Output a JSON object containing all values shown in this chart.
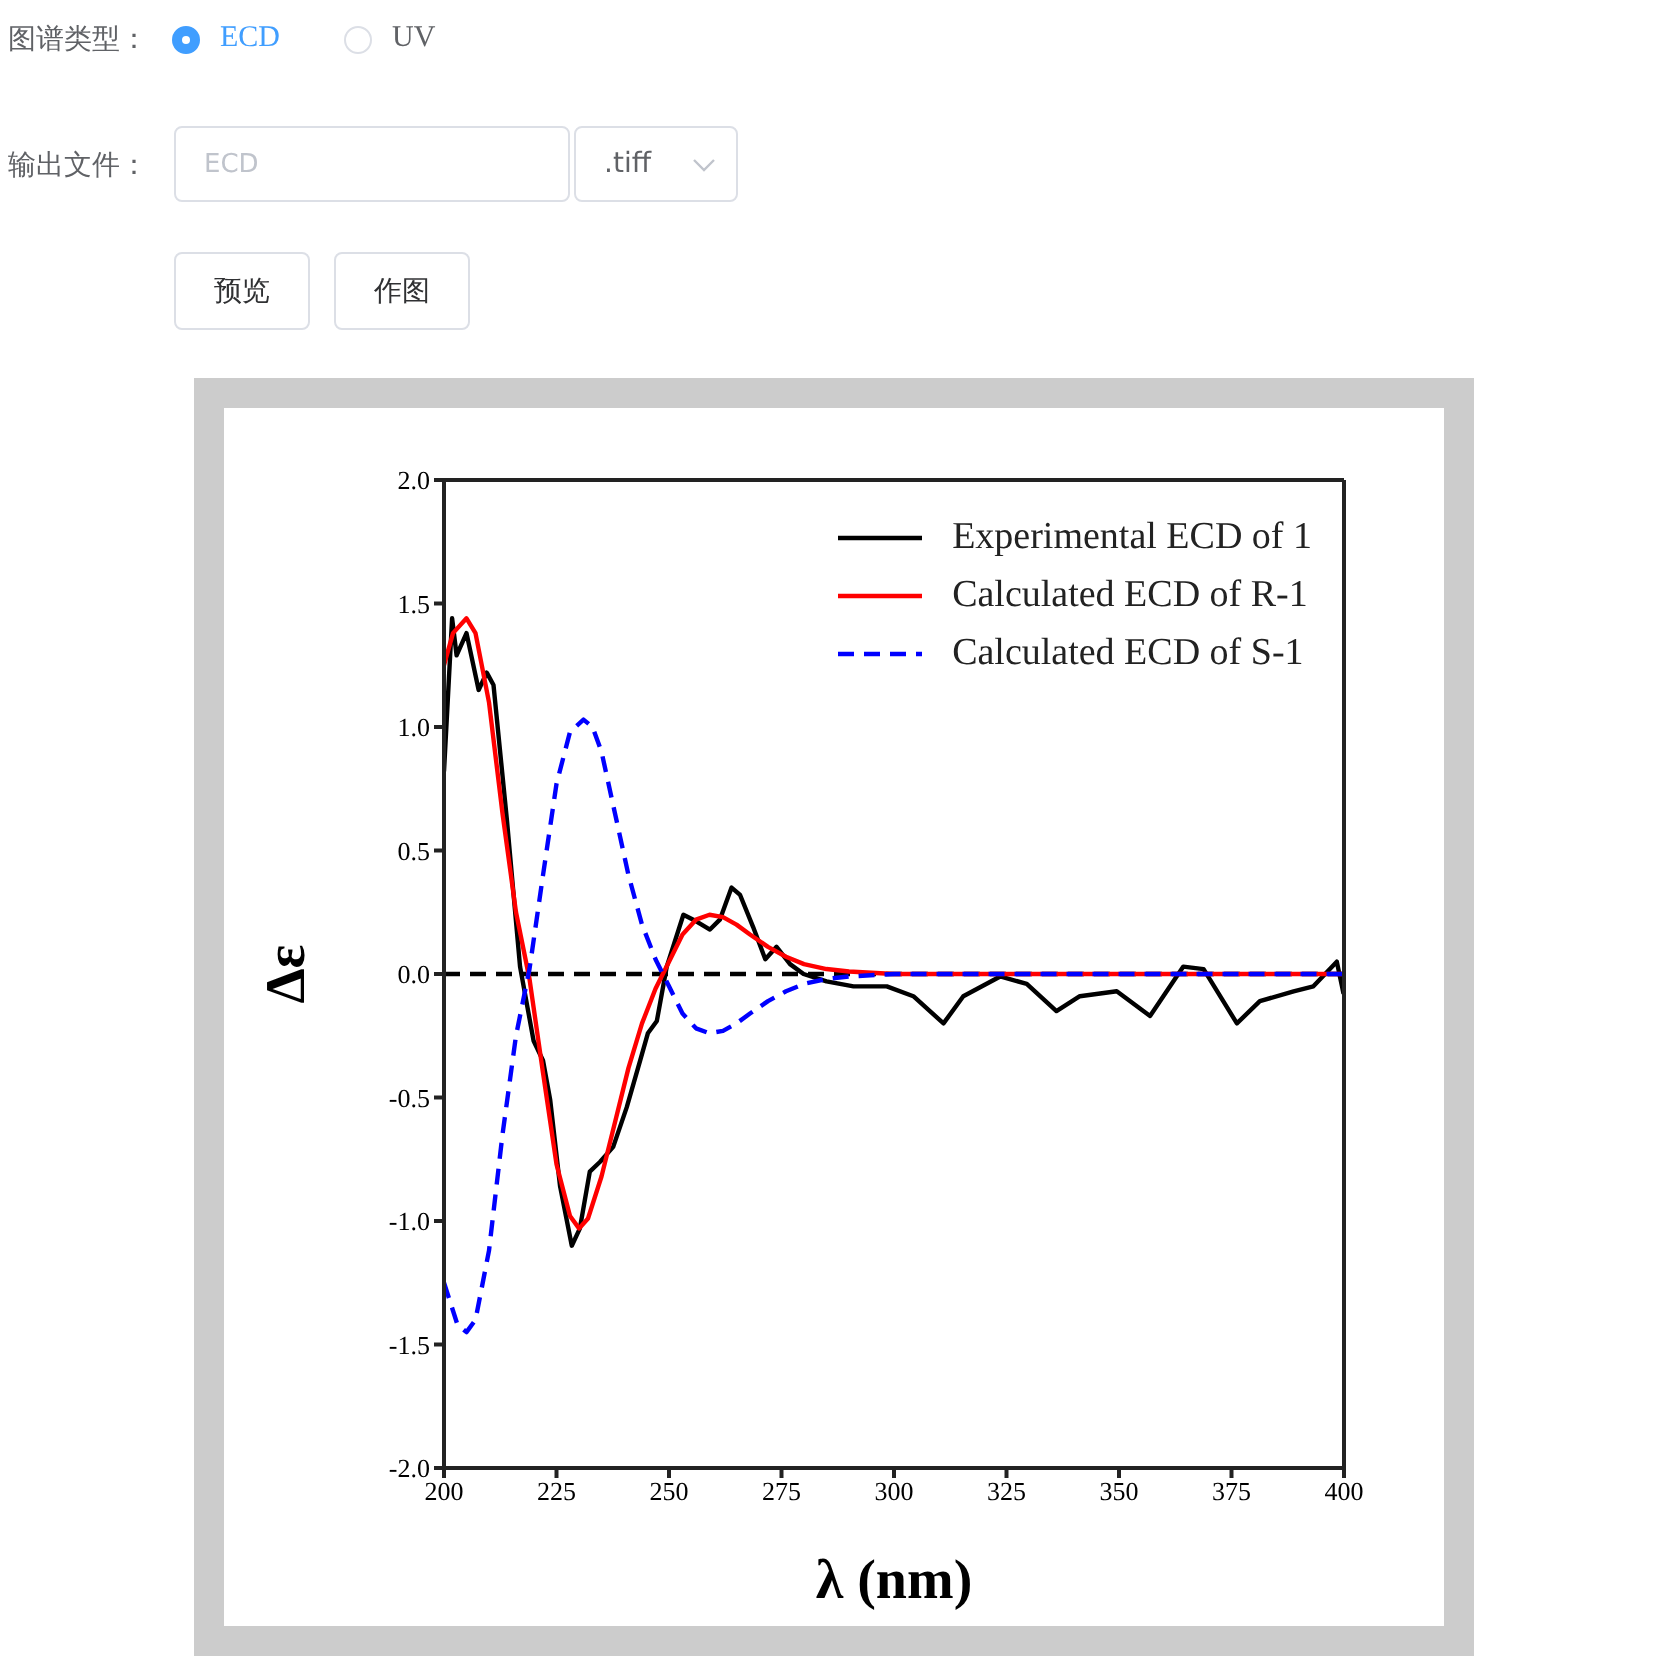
{
  "chart_data": [
    {
      "type": "other",
      "annotations": [
        "图谱类型：",
        "ECD",
        "UV",
        "输出文件：",
        "ECD",
        ".tiff",
        "预览",
        "作图"
      ]
    },
    {
      "type": "line",
      "xlabel": "λ (nm)",
      "ylabel": "Δε",
      "xlim": [
        200,
        400
      ],
      "xticks": [
        200,
        225,
        250,
        275,
        300,
        325,
        350,
        375,
        400
      ],
      "ylim": [
        -2,
        2
      ],
      "yticks": [
        {
          "value": -2,
          "label": "-2.0"
        },
        -1.5,
        {
          "value": -1,
          "label": "-1.0"
        },
        -0.5,
        {
          "value": 0,
          "label": "0.0"
        },
        0.5,
        {
          "value": 1,
          "label": "1.0"
        },
        1.5,
        {
          "value": 2,
          "label": "2.0"
        }
      ],
      "legend": "top right",
      "ref_lines": [
        {
          "axis": "y",
          "value": 0,
          "color": "#000000",
          "line_style": "dashed"
        }
      ],
      "series": [
        {
          "name": "Experimental ECD of 1",
          "color": "#000000",
          "line_style": "solid",
          "x": [
            200,
            201.8,
            202.8,
            205,
            207.7,
            209.5,
            211,
            214,
            216.9,
            219.9,
            222,
            223.6,
            225.8,
            228.4,
            230.2,
            232.4,
            234.7,
            237.6,
            240.6,
            243.6,
            245.3,
            247.3,
            249.5,
            253.2,
            255.4,
            259.1,
            261.3,
            263.9,
            265.8,
            268.7,
            271.4,
            273.9,
            276.9,
            279.9,
            285,
            291,
            298.4,
            304.3,
            311,
            315.4,
            323.6,
            329.5,
            336.1,
            341.3,
            349.5,
            356.9,
            364.3,
            368.8,
            376.2,
            381.3,
            388.8,
            393.2,
            398.4,
            399.9
          ],
          "values": [
            0.82,
            1.44,
            1.29,
            1.38,
            1.15,
            1.22,
            1.17,
            0.62,
            0.03,
            -0.27,
            -0.35,
            -0.51,
            -0.86,
            -1.1,
            -1.03,
            -0.8,
            -0.76,
            -0.7,
            -0.54,
            -0.35,
            -0.24,
            -0.19,
            0.03,
            0.24,
            0.22,
            0.18,
            0.22,
            0.35,
            0.32,
            0.19,
            0.06,
            0.11,
            0.04,
            0.0,
            -0.03,
            -0.05,
            -0.05,
            -0.09,
            -0.2,
            -0.09,
            -0.01,
            -0.04,
            -0.15,
            -0.09,
            -0.07,
            -0.17,
            0.03,
            0.02,
            -0.2,
            -0.11,
            -0.07,
            -0.05,
            0.05,
            -0.08
          ]
        },
        {
          "name": "Calculated ECD of R-1",
          "color": "#ff0000",
          "line_style": "solid",
          "x": [
            200,
            202,
            205,
            207,
            210,
            213,
            216,
            219,
            222,
            225,
            228,
            230,
            232,
            235,
            238,
            241,
            244,
            247,
            250,
            253,
            256,
            259,
            262,
            265,
            268,
            272,
            276,
            280,
            285,
            290,
            300,
            350,
            400
          ],
          "values": [
            1.25,
            1.38,
            1.44,
            1.38,
            1.1,
            0.65,
            0.25,
            -0.02,
            -0.4,
            -0.77,
            -0.98,
            -1.03,
            -0.99,
            -0.82,
            -0.6,
            -0.38,
            -0.2,
            -0.06,
            0.05,
            0.16,
            0.22,
            0.24,
            0.23,
            0.2,
            0.16,
            0.11,
            0.07,
            0.04,
            0.02,
            0.01,
            0,
            0,
            0
          ]
        },
        {
          "name": "Calculated ECD of S-1",
          "color": "#0000ff",
          "line_style": "dashed",
          "x": [
            200,
            203,
            205,
            207,
            210,
            213,
            216,
            219,
            222,
            225,
            228,
            231,
            233,
            235,
            238,
            241,
            244,
            247,
            250,
            253,
            256,
            259,
            262,
            265,
            268,
            272,
            276,
            280,
            285,
            290,
            300,
            350,
            400
          ],
          "values": [
            -1.25,
            -1.42,
            -1.45,
            -1.4,
            -1.12,
            -0.65,
            -0.25,
            0.02,
            0.4,
            0.77,
            0.98,
            1.03,
            1.0,
            0.9,
            0.65,
            0.4,
            0.2,
            0.06,
            -0.05,
            -0.16,
            -0.22,
            -0.24,
            -0.23,
            -0.2,
            -0.16,
            -0.11,
            -0.07,
            -0.04,
            -0.02,
            -0.01,
            0,
            0,
            0
          ]
        }
      ]
    }
  ]
}
